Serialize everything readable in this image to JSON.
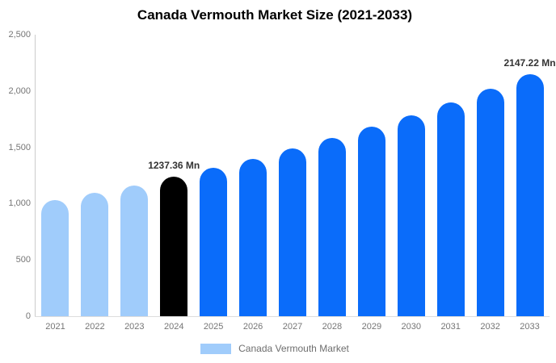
{
  "title": "Canada Vermouth Market Size (2021-2033)",
  "legend": {
    "label": "Canada Vermouth Market",
    "swatch_color": "#a0ccfb"
  },
  "colors": {
    "light_blue": "#a0ccfb",
    "bright_blue": "#0a6cfa",
    "black": "#000000",
    "axis_line": "#cccccc",
    "baseline": "#dddddd",
    "tick_text": "#757575",
    "value_label_text": "#333333",
    "title_text": "#000000"
  },
  "chart_data": {
    "type": "bar",
    "title": "Canada Vermouth Market Size (2021-2033)",
    "xlabel": "",
    "ylabel": "",
    "ylim": [
      0,
      2500
    ],
    "grid": false,
    "legend_position": "bottom",
    "legend_entries": [
      "Canada Vermouth Market"
    ],
    "unit": "Mn",
    "categories": [
      "2021",
      "2022",
      "2023",
      "2024",
      "2025",
      "2026",
      "2027",
      "2028",
      "2029",
      "2030",
      "2031",
      "2032",
      "2033"
    ],
    "values": [
      1029,
      1095,
      1164,
      1237.36,
      1315,
      1399,
      1487,
      1581,
      1681,
      1787,
      1900,
      2020,
      2147.22
    ],
    "point_colors": [
      "#a0ccfb",
      "#a0ccfb",
      "#a0ccfb",
      "#000000",
      "#0a6cfa",
      "#0a6cfa",
      "#0a6cfa",
      "#0a6cfa",
      "#0a6cfa",
      "#0a6cfa",
      "#0a6cfa",
      "#0a6cfa",
      "#0a6cfa"
    ],
    "point_labels": [
      "",
      "",
      "",
      "1237.36 Mn",
      "",
      "",
      "",
      "",
      "",
      "",
      "",
      "",
      "2147.22 Mn"
    ],
    "y_ticks": [
      {
        "label": "2,500",
        "value": 2500
      },
      {
        "label": "2,000",
        "value": 2000
      },
      {
        "label": "1,500",
        "value": 1500
      },
      {
        "label": "1,000",
        "value": 1000
      },
      {
        "label": "500",
        "value": 500
      },
      {
        "label": "0",
        "value": 0
      }
    ]
  }
}
